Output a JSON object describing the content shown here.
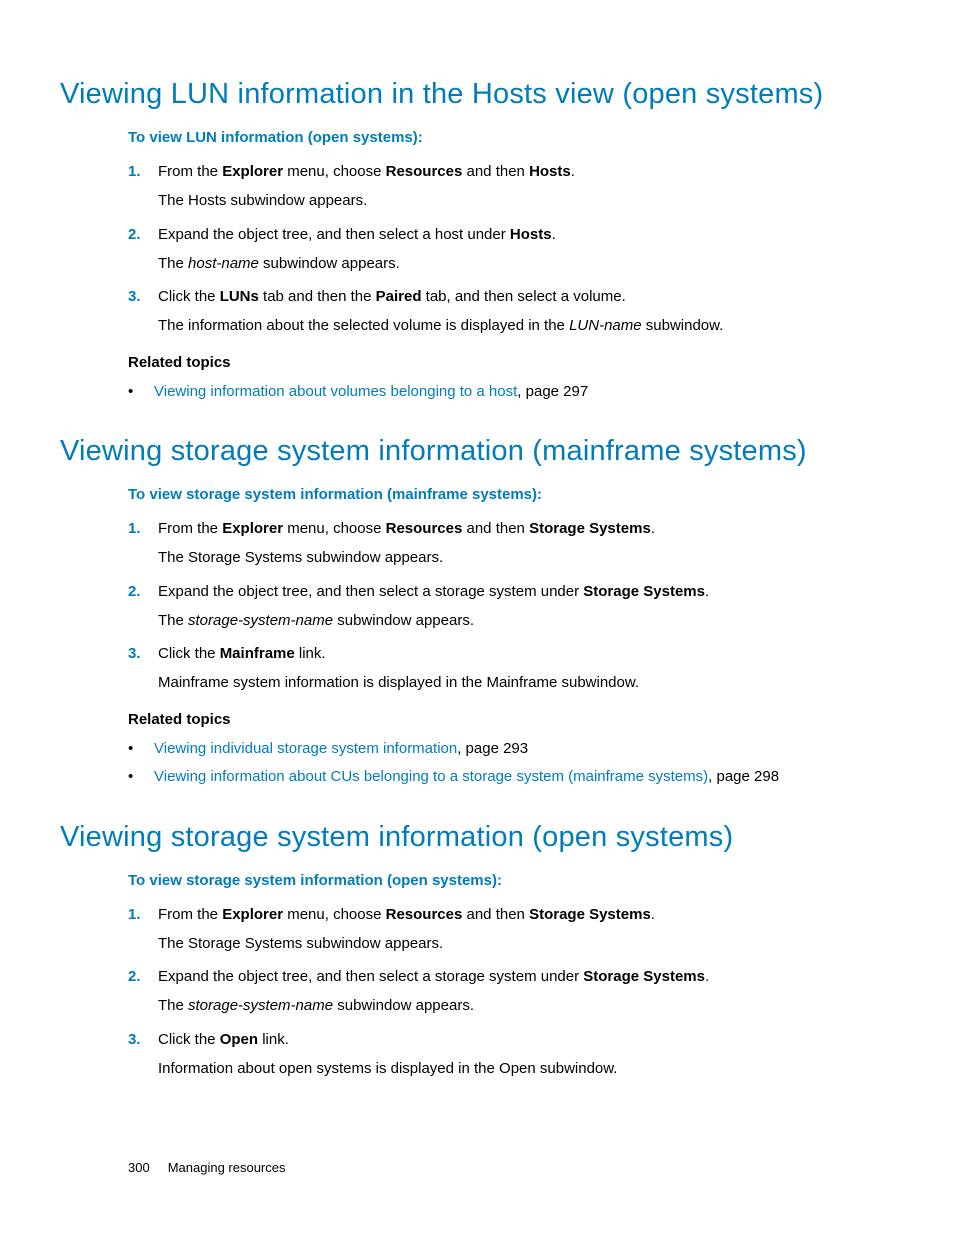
{
  "colors": {
    "accent": "#007cba",
    "text": "#000000",
    "background": "#ffffff"
  },
  "typography": {
    "body_pt": 15,
    "h1_pt": 29,
    "h1_weight": 300
  },
  "s1": {
    "title": "Viewing LUN information in the Hosts view (open systems)",
    "subhead": "To view LUN information (open systems):",
    "step1_num": "1.",
    "step1_a": "From the ",
    "step1_b": "Explorer",
    "step1_c": " menu, choose ",
    "step1_d": "Resources",
    "step1_e": " and then ",
    "step1_f": "Hosts",
    "step1_g": ".",
    "step1_l2": "The Hosts subwindow appears.",
    "step2_num": "2.",
    "step2_a": "Expand the object tree, and then select a host under ",
    "step2_b": "Hosts",
    "step2_c": ".",
    "step2_l2a": "The ",
    "step2_l2i": "host-name",
    "step2_l2b": " subwindow appears.",
    "step3_num": "3.",
    "step3_a": "Click the ",
    "step3_b": "LUNs",
    "step3_c": " tab and then the ",
    "step3_d": "Paired",
    "step3_e": " tab, and then select a volume.",
    "step3_l2a": "The information about the selected volume is displayed in the ",
    "step3_l2i": "LUN-name",
    "step3_l2b": " subwindow.",
    "rel_hd": "Related topics",
    "rel1_link": "Viewing information about volumes belonging to a host",
    "rel1_tail": ", page 297"
  },
  "s2": {
    "title": "Viewing storage system information (mainframe systems)",
    "subhead": "To view storage system information (mainframe systems):",
    "step1_num": "1.",
    "step1_a": "From the ",
    "step1_b": "Explorer",
    "step1_c": " menu, choose ",
    "step1_d": "Resources",
    "step1_e": " and then ",
    "step1_f": "Storage Systems",
    "step1_g": ".",
    "step1_l2": "The Storage Systems subwindow appears.",
    "step2_num": "2.",
    "step2_a": "Expand the object tree, and then select a storage system under ",
    "step2_b": "Storage Systems",
    "step2_c": ".",
    "step2_l2a": "The ",
    "step2_l2i": "storage-system-name",
    "step2_l2b": " subwindow appears.",
    "step3_num": "3.",
    "step3_a": "Click the ",
    "step3_b": "Mainframe",
    "step3_c": " link.",
    "step3_l2": "Mainframe system information is displayed in the Mainframe subwindow.",
    "rel_hd": "Related topics",
    "rel1_link": "Viewing individual storage system information",
    "rel1_tail": ", page 293",
    "rel2_link": "Viewing information about CUs belonging to a storage system (mainframe systems)",
    "rel2_tail": ", page 298"
  },
  "s3": {
    "title": "Viewing storage system information (open systems)",
    "subhead": "To view storage system information (open systems):",
    "step1_num": "1.",
    "step1_a": "From the ",
    "step1_b": "Explorer",
    "step1_c": " menu, choose ",
    "step1_d": "Resources",
    "step1_e": " and then ",
    "step1_f": "Storage Systems",
    "step1_g": ".",
    "step1_l2": "The Storage Systems subwindow appears.",
    "step2_num": "2.",
    "step2_a": "Expand the object tree, and then select a storage system under ",
    "step2_b": "Storage Systems",
    "step2_c": ".",
    "step2_l2a": "The ",
    "step2_l2i": "storage-system-name",
    "step2_l2b": " subwindow appears.",
    "step3_num": "3.",
    "step3_a": "Click the ",
    "step3_b": "Open",
    "step3_c": " link.",
    "step3_l2": "Information about open systems is displayed in the Open subwindow."
  },
  "footer": {
    "page": "300",
    "chapter": "Managing resources"
  }
}
